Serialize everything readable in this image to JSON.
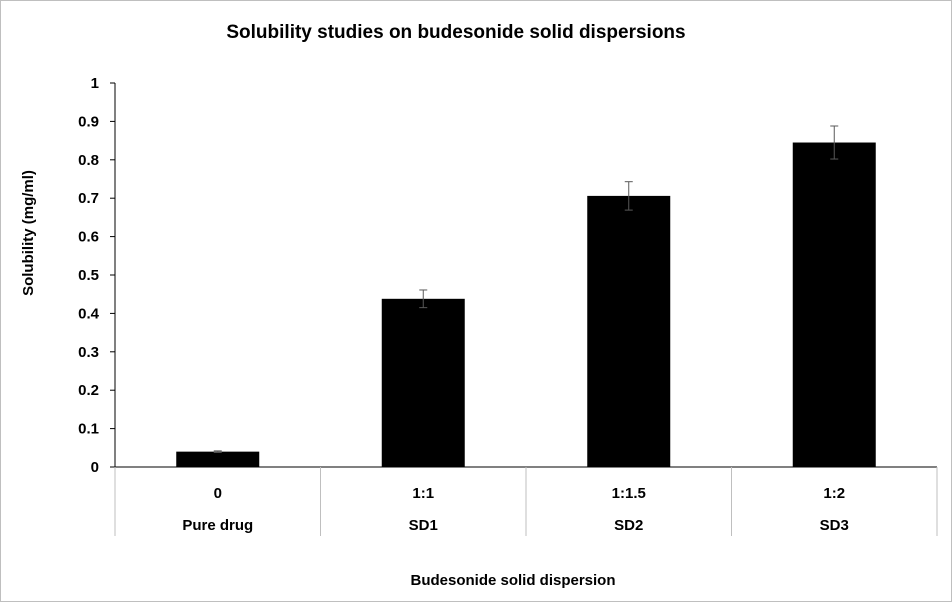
{
  "chart_data": {
    "type": "bar",
    "title": "Solubility studies on budesonide solid dispersions",
    "xlabel": "Budesonide solid dispersion",
    "ylabel": "Solubility (mg/ml)",
    "ylim": [
      0,
      1
    ],
    "yticks": [
      "0",
      "0.1",
      "0.2",
      "0.3",
      "0.4",
      "0.5",
      "0.6",
      "0.7",
      "0.8",
      "0.9",
      "1"
    ],
    "categories": [
      {
        "ratio": "0",
        "name": "Pure drug"
      },
      {
        "ratio": "1:1",
        "name": "SD1"
      },
      {
        "ratio": "1:1.5",
        "name": "SD2"
      },
      {
        "ratio": "1:2",
        "name": "SD3"
      }
    ],
    "values": [
      0.04,
      0.438,
      0.706,
      0.845
    ],
    "errors": [
      0.002,
      0.023,
      0.037,
      0.043
    ],
    "bar_color": "#000000",
    "grid": false,
    "legend": "none"
  }
}
